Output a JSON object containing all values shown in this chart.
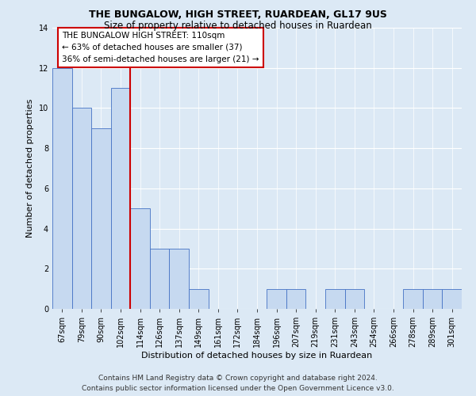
{
  "title": "THE BUNGALOW, HIGH STREET, RUARDEAN, GL17 9US",
  "subtitle": "Size of property relative to detached houses in Ruardean",
  "xlabel": "Distribution of detached houses by size in Ruardean",
  "ylabel": "Number of detached properties",
  "categories": [
    "67sqm",
    "79sqm",
    "90sqm",
    "102sqm",
    "114sqm",
    "126sqm",
    "137sqm",
    "149sqm",
    "161sqm",
    "172sqm",
    "184sqm",
    "196sqm",
    "207sqm",
    "219sqm",
    "231sqm",
    "243sqm",
    "254sqm",
    "266sqm",
    "278sqm",
    "289sqm",
    "301sqm"
  ],
  "values": [
    12,
    10,
    9,
    11,
    5,
    3,
    3,
    1,
    0,
    0,
    0,
    1,
    1,
    0,
    1,
    1,
    0,
    0,
    1,
    1,
    1
  ],
  "bar_color": "#c6d9f0",
  "bar_edge_color": "#4472c4",
  "vline_x_index": 4,
  "vline_color": "#cc0000",
  "annotation_line1": "THE BUNGALOW HIGH STREET: 110sqm",
  "annotation_line2": "← 63% of detached houses are smaller (37)",
  "annotation_line3": "36% of semi-detached houses are larger (21) →",
  "annotation_box_color": "#ffffff",
  "annotation_box_edge_color": "#cc0000",
  "ylim": [
    0,
    14
  ],
  "yticks": [
    0,
    2,
    4,
    6,
    8,
    10,
    12,
    14
  ],
  "footer_line1": "Contains HM Land Registry data © Crown copyright and database right 2024.",
  "footer_line2": "Contains public sector information licensed under the Open Government Licence v3.0.",
  "bg_color": "#dce9f5",
  "plot_bg_color": "#dce9f5",
  "title_fontsize": 9,
  "subtitle_fontsize": 8.5,
  "axis_label_fontsize": 8,
  "tick_fontsize": 7,
  "annotation_fontsize": 7.5,
  "footer_fontsize": 6.5
}
